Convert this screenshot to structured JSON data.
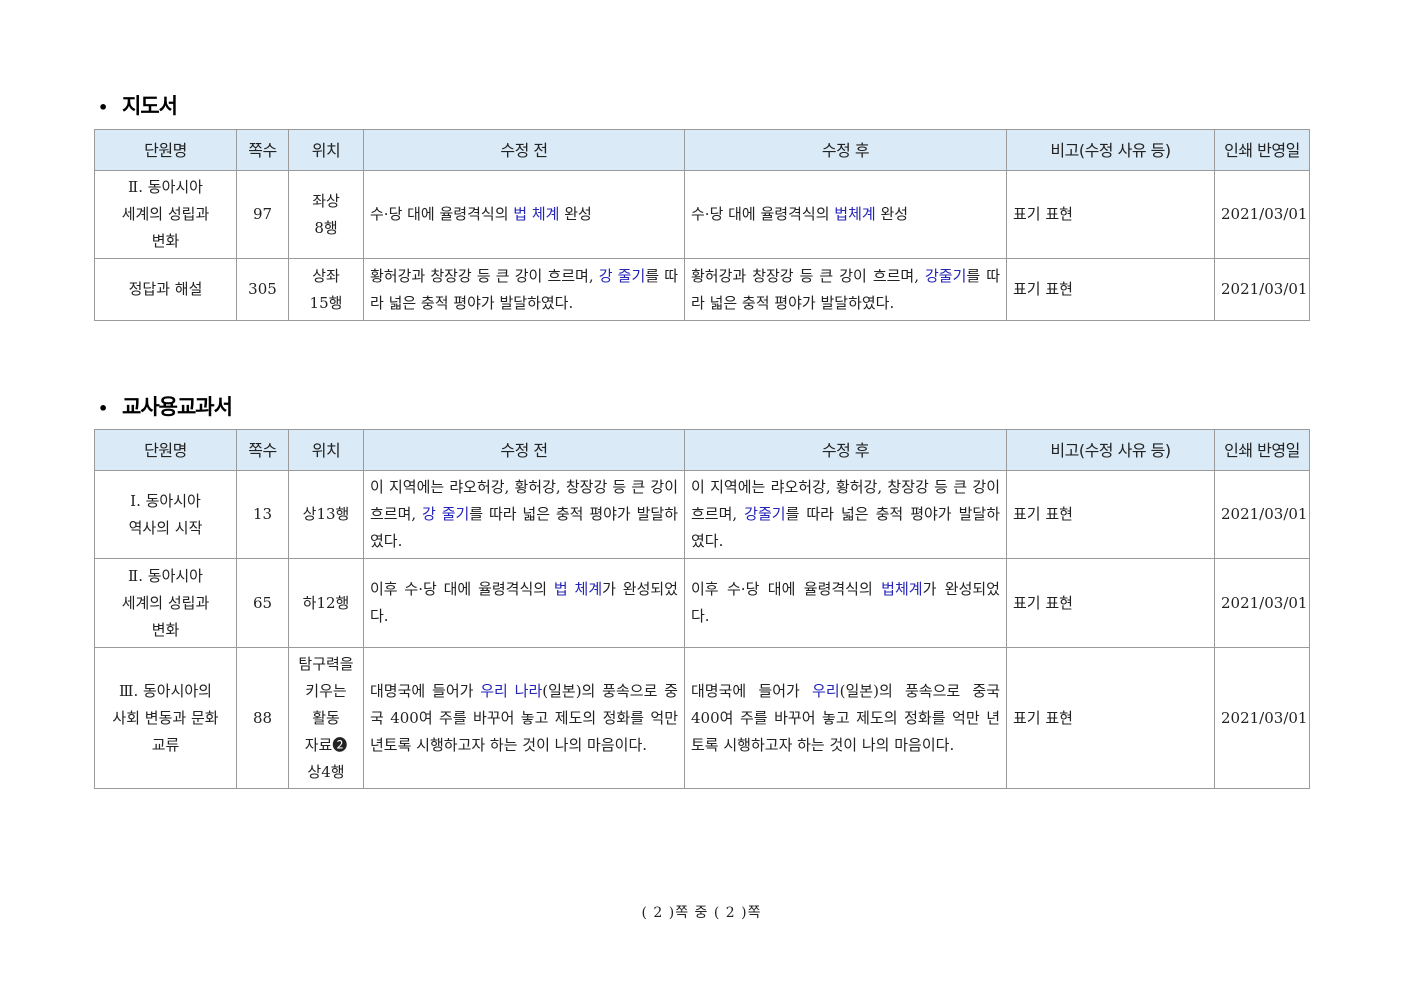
{
  "columns": [
    "단원명",
    "쪽수",
    "위치",
    "수정 전",
    "수정 후",
    "비고(수정 사유 등)",
    "인쇄 반영일"
  ],
  "sections": [
    {
      "title": "지도서",
      "rows": [
        {
          "unit": [
            "Ⅱ. 동아시아",
            "세계의 성립과",
            "변화"
          ],
          "page": "97",
          "position": [
            "좌상",
            "8행"
          ],
          "before": {
            "pre": "수·당 대에 율령격식의 ",
            "hl": "법 체계",
            "post": " 완성"
          },
          "after": {
            "pre": "수·당 대에 율령격식의 ",
            "hl": "법체계",
            "post": " 완성"
          },
          "note": "표기 표현",
          "date": "2021/03/01"
        },
        {
          "unit": [
            "정답과 해설"
          ],
          "page": "305",
          "position": [
            "상좌",
            "15행"
          ],
          "before": {
            "pre": "황허강과 창장강 등 큰 강이 흐르며, ",
            "hl": "강 줄기",
            "post": "를 따라 넓은 충적 평야가 발달하였다."
          },
          "after": {
            "pre": "황허강과 창장강 등 큰 강이 흐르며, ",
            "hl": "강줄기",
            "post": "를 따라 넓은 충적 평야가 발달하였다."
          },
          "note": "표기 표현",
          "date": "2021/03/01"
        }
      ]
    },
    {
      "title": "교사용교과서",
      "rows": [
        {
          "unit": [
            "Ⅰ. 동아시아",
            "역사의 시작"
          ],
          "page": "13",
          "position": [
            "상13행"
          ],
          "before": {
            "pre": "이 지역에는 랴오허강, 황허강, 창장강 등 큰 강이 흐르며, ",
            "hl": "강 줄기",
            "post": "를 따라 넓은 충적 평야가 발달하였다."
          },
          "after": {
            "pre": "이 지역에는 랴오허강, 황허강, 창장강 등 큰 강이 흐르며, ",
            "hl": "강줄기",
            "post": "를 따라 넓은 충적 평야가 발달하였다."
          },
          "note": "표기 표현",
          "date": "2021/03/01"
        },
        {
          "unit": [
            "Ⅱ. 동아시아",
            "세계의 성립과",
            "변화"
          ],
          "page": "65",
          "position": [
            "하12행"
          ],
          "before": {
            "pre": "이후 수·당 대에 율령격식의 ",
            "hl": "법 체계",
            "post": "가 완성되었다."
          },
          "after": {
            "pre": "이후 수·당 대에 율령격식의 ",
            "hl": "법체계",
            "post": "가 완성되었다."
          },
          "note": "표기 표현",
          "date": "2021/03/01"
        },
        {
          "unit": [
            "Ⅲ. 동아시아의",
            "사회 변동과 문화",
            "교류"
          ],
          "page": "88",
          "position": [
            "탐구력을",
            "키우는",
            "활동",
            "자료❷",
            "상4행"
          ],
          "before": {
            "pre": "대명국에 들어가 ",
            "hl": "우리 나라",
            "post": "(일본)의 풍속으로 중국 400여 주를 바꾸어 놓고 제도의 정화를 억만 년토록 시행하고자 하는 것이 나의 마음이다."
          },
          "after": {
            "pre": "대명국에 들어가 ",
            "hl": "우리",
            "post": "(일본)의 풍속으로 중국 400여 주를 바꾸어 놓고 제도의 정화를 억만 년토록 시행하고자 하는 것이 나의 마음이다."
          },
          "note": "표기 표현",
          "date": "2021/03/01"
        }
      ]
    }
  ],
  "footer": "( 2 )쪽 중 ( 2 )쪽"
}
